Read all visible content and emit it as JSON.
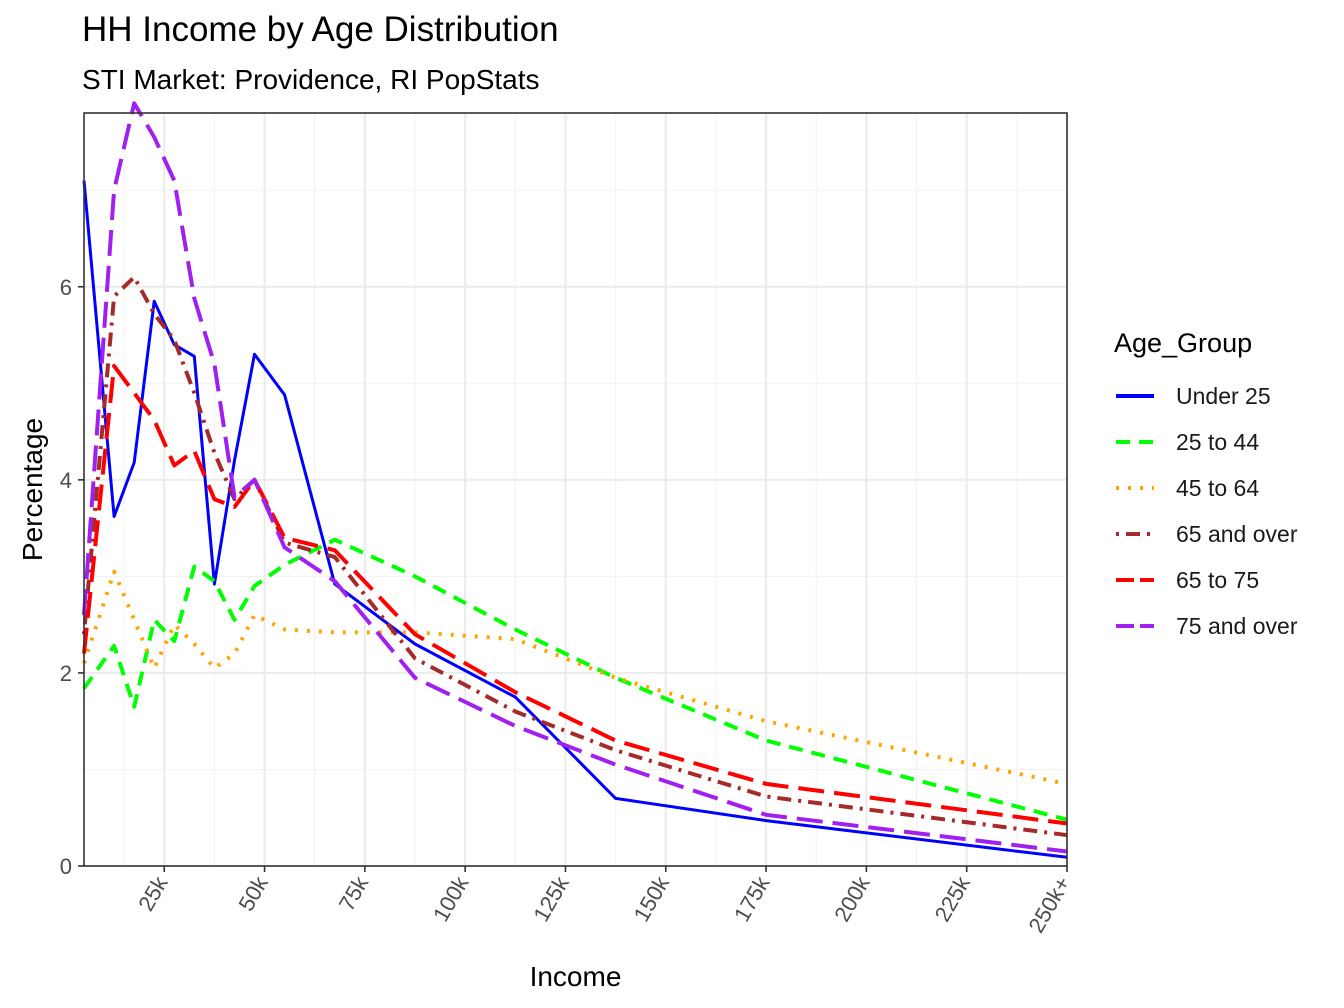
{
  "chart_data": {
    "type": "line",
    "title": "HH Income by Age Distribution",
    "subtitle": "STI Market: Providence, RI PopStats",
    "xlabel": "Income",
    "ylabel": "Percentage",
    "xlim": [
      5,
      250
    ],
    "ylim": [
      0,
      7.8
    ],
    "x_ticks": [
      25,
      50,
      75,
      100,
      125,
      150,
      175,
      200,
      225,
      250
    ],
    "x_tick_labels": [
      "25k",
      "50k",
      "75k",
      "100k",
      "125k",
      "150k",
      "175k",
      "200k",
      "225k",
      "250k+"
    ],
    "y_ticks": [
      0,
      2,
      4,
      6
    ],
    "y_tick_labels": [
      "0",
      "2",
      "4",
      "6"
    ],
    "grid": true,
    "legend_title": "Age_Group",
    "legend_position": "right",
    "x": [
      5,
      12.5,
      17.5,
      22.5,
      27.5,
      32.5,
      37.5,
      42.5,
      47.5,
      55,
      67.5,
      87.5,
      112.5,
      137.5,
      175,
      250
    ],
    "series": [
      {
        "name": "Under 25",
        "color": "#0000ff",
        "dash": "solid",
        "width": 3,
        "values": [
          7.1,
          3.62,
          4.18,
          5.85,
          5.4,
          5.28,
          2.92,
          4.2,
          5.3,
          4.88,
          2.92,
          2.3,
          1.75,
          0.7,
          0.47,
          0.09
        ]
      },
      {
        "name": "25 to 44",
        "color": "#00ff00",
        "dash": "dashed",
        "width": 4,
        "values": [
          1.84,
          2.28,
          1.65,
          2.55,
          2.33,
          3.1,
          2.95,
          2.55,
          2.9,
          3.12,
          3.38,
          3.0,
          2.45,
          1.95,
          1.3,
          0.48
        ]
      },
      {
        "name": "45 to 64",
        "color": "#ffa500",
        "dash": "dotted",
        "width": 4,
        "values": [
          2.1,
          3.05,
          2.55,
          2.05,
          2.5,
          2.3,
          2.05,
          2.2,
          2.6,
          2.45,
          2.42,
          2.42,
          2.35,
          1.95,
          1.5,
          0.85
        ]
      },
      {
        "name": "65 and over",
        "color": "#a52a2a",
        "dash": "dashdot",
        "width": 4,
        "values": [
          2.4,
          5.9,
          6.1,
          5.72,
          5.45,
          4.9,
          4.28,
          3.8,
          4.0,
          3.35,
          3.2,
          2.15,
          1.6,
          1.2,
          0.72,
          0.32
        ]
      },
      {
        "name": "65 to 75",
        "color": "#ff0000",
        "dash": "longdash",
        "width": 4,
        "values": [
          2.2,
          5.18,
          4.9,
          4.62,
          4.15,
          4.3,
          3.8,
          3.72,
          4.0,
          3.4,
          3.27,
          2.4,
          1.8,
          1.3,
          0.85,
          0.44
        ]
      },
      {
        "name": "75 and over",
        "color": "#a020f0",
        "dash": "longdash",
        "width": 4,
        "values": [
          2.6,
          7.0,
          7.9,
          7.55,
          7.1,
          5.88,
          5.2,
          3.82,
          4.0,
          3.3,
          2.95,
          1.95,
          1.45,
          1.05,
          0.53,
          0.15
        ]
      }
    ]
  }
}
